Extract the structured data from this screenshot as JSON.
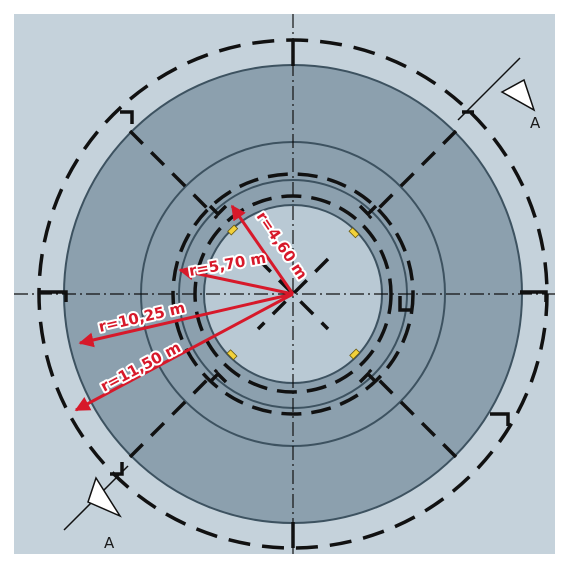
{
  "colors": {
    "background": "#c5d2db",
    "outer_ring": "#8ca0ae",
    "inner_disc": "#b9c9d4",
    "outline": "#3d5260",
    "dimension_red": "#d7192a",
    "anchor_yellow": "#f2d13a",
    "dash_black": "#111111"
  },
  "dimensions": [
    {
      "label": "r=4,60 m",
      "radius_m": 4.6
    },
    {
      "label": "r=5,70 m",
      "radius_m": 5.7
    },
    {
      "label": "r=10,25 m",
      "radius_m": 10.25
    },
    {
      "label": "r=11,50 m",
      "radius_m": 11.5
    }
  ],
  "section": {
    "marker_top": "A",
    "marker_bottom": "A"
  },
  "icons": [
    "section-arrow-icon",
    "dimension-arrow-icon",
    "anchor-marker-icon"
  ]
}
